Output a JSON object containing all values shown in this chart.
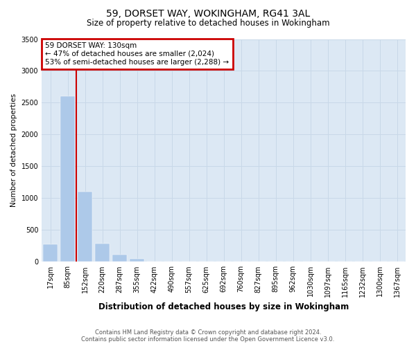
{
  "title": "59, DORSET WAY, WOKINGHAM, RG41 3AL",
  "subtitle": "Size of property relative to detached houses in Wokingham",
  "xlabel": "Distribution of detached houses by size in Wokingham",
  "ylabel": "Number of detached properties",
  "bar_labels": [
    "17sqm",
    "85sqm",
    "152sqm",
    "220sqm",
    "287sqm",
    "355sqm",
    "422sqm",
    "490sqm",
    "557sqm",
    "625sqm",
    "692sqm",
    "760sqm",
    "827sqm",
    "895sqm",
    "962sqm",
    "1030sqm",
    "1097sqm",
    "1165sqm",
    "1232sqm",
    "1300sqm",
    "1367sqm"
  ],
  "bar_values": [
    270,
    2600,
    1100,
    290,
    110,
    50,
    0,
    0,
    0,
    0,
    0,
    0,
    0,
    0,
    0,
    0,
    0,
    0,
    0,
    0,
    0
  ],
  "bar_color": "#adc9e9",
  "vline_color": "#cc0000",
  "vline_pos": 1.5,
  "annotation_text": "59 DORSET WAY: 130sqm\n← 47% of detached houses are smaller (2,024)\n53% of semi-detached houses are larger (2,288) →",
  "annotation_box_edgecolor": "#cc0000",
  "ylim": [
    0,
    3500
  ],
  "yticks": [
    0,
    500,
    1000,
    1500,
    2000,
    2500,
    3000,
    3500
  ],
  "grid_color": "#c8d8e8",
  "background_color": "#dce8f4",
  "footer_line1": "Contains HM Land Registry data © Crown copyright and database right 2024.",
  "footer_line2": "Contains public sector information licensed under the Open Government Licence v3.0."
}
